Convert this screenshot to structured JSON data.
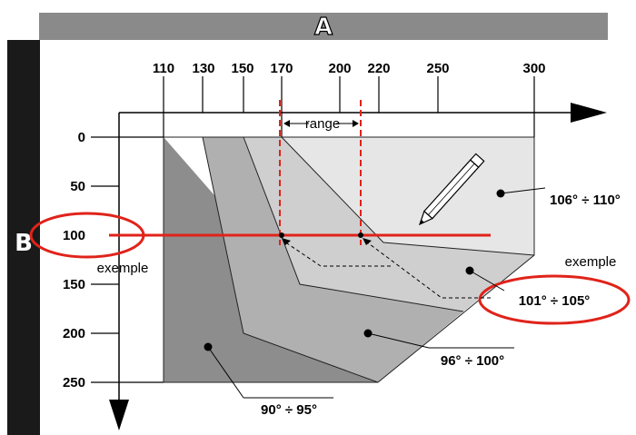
{
  "header_a": "A",
  "header_b": "B",
  "range_label": "range",
  "x_ticks": [
    "110",
    "130",
    "150",
    "170",
    "200",
    "220",
    "250",
    "300"
  ],
  "y_ticks": [
    "0",
    "50",
    "100",
    "150",
    "200",
    "250"
  ],
  "zones": [
    {
      "label": "106° ÷ 110°",
      "fill": "#e6e6e6"
    },
    {
      "label": "101° ÷ 105°",
      "fill": "#cfcfcf"
    },
    {
      "label": "96° ÷ 100°",
      "fill": "#b0b0b0"
    },
    {
      "label": "90° ÷ 95°",
      "fill": "#8d8d8d"
    }
  ],
  "example_labels": [
    "exemple",
    "exemple"
  ],
  "colors": {
    "accent_red": "#e0231a",
    "header_bar": "#8a8a8a",
    "side_bar": "#1a1a1a"
  },
  "icons": [
    "pencil-icon"
  ]
}
